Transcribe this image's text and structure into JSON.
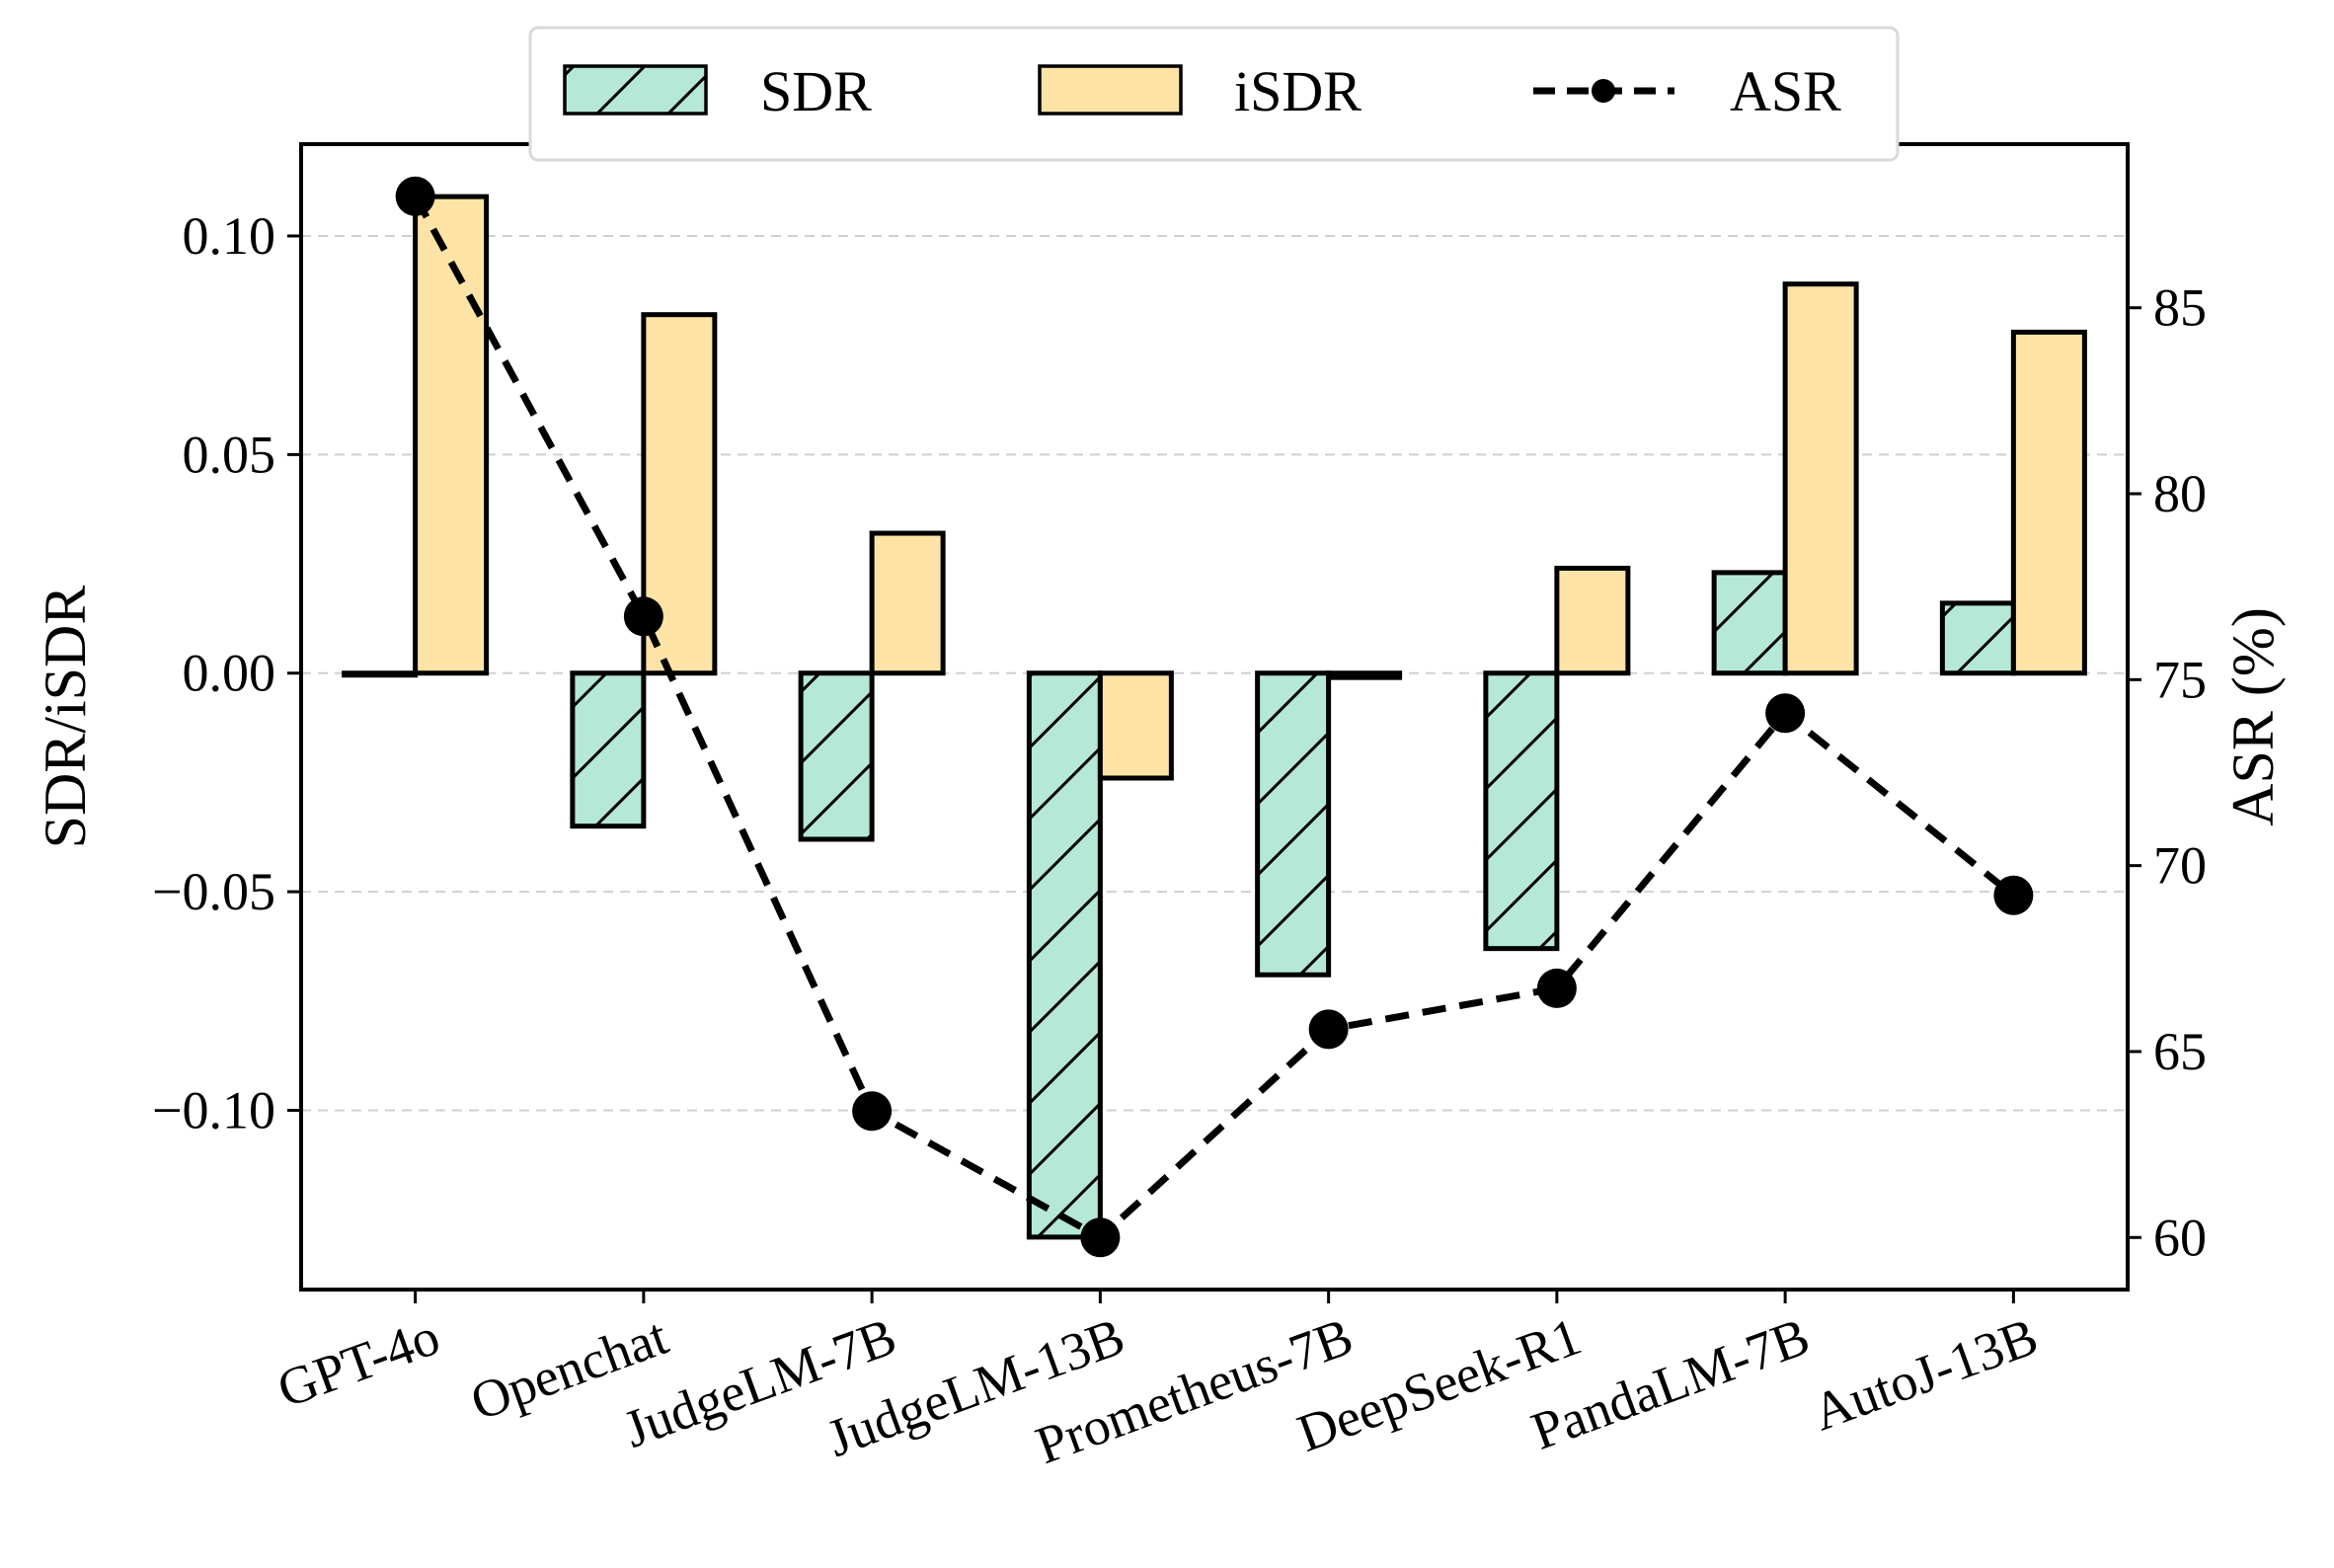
{
  "chart_data": {
    "type": "bar",
    "categories": [
      "GPT-4o",
      "Openchat",
      "JudgeLM-7B",
      "JudgeLM-13B",
      "Prometheus-7B",
      "DeepSeek-R1",
      "PandaLM-7B",
      "AutoJ-13B"
    ],
    "series": [
      {
        "name": "SDR",
        "axis": "left",
        "kind": "bar",
        "hatch": "diagonal",
        "color": "#b5e8d6",
        "values": [
          0.0,
          -0.035,
          -0.038,
          -0.129,
          -0.069,
          -0.063,
          0.023,
          0.016
        ]
      },
      {
        "name": "iSDR",
        "axis": "left",
        "kind": "bar",
        "color": "#fde4a6",
        "values": [
          0.109,
          0.082,
          0.032,
          -0.024,
          -0.001,
          0.024,
          0.089,
          0.078
        ]
      },
      {
        "name": "ASR",
        "axis": "right",
        "kind": "line",
        "style": "dashed",
        "marker": "circle",
        "color": "#000000",
        "values": [
          88.0,
          76.7,
          63.4,
          60.0,
          65.6,
          66.7,
          74.1,
          69.2
        ]
      }
    ],
    "ylabel": "SDR/iSDR",
    "ylim": [
      -0.141,
      0.121
    ],
    "yticks": [
      "0.10",
      "0.05",
      "0.00",
      "−0.05",
      "−0.10"
    ],
    "ytick_values": [
      0.1,
      0.05,
      0.0,
      -0.05,
      -0.1
    ],
    "y2label": "ASR (%)",
    "y2lim": [
      58.6,
      89.4
    ],
    "y2ticks": [
      "85",
      "80",
      "75",
      "70",
      "65",
      "60"
    ],
    "y2tick_values": [
      85,
      80,
      75,
      70,
      65,
      60
    ],
    "grid": "horizontal dashed",
    "legend_position": "top-center"
  }
}
